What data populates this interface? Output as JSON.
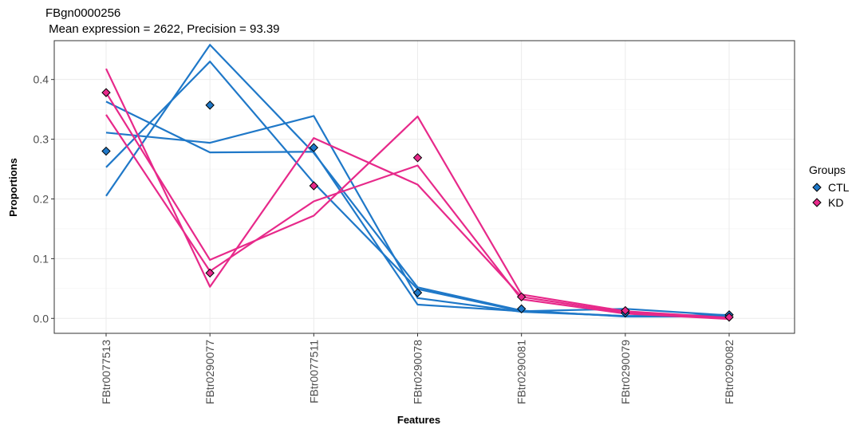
{
  "chart_data": {
    "type": "line",
    "title": "FBgn0000256",
    "subtitle": " Mean expression = 2622, Precision = 93.39",
    "xlabel": "Features",
    "ylabel": "Proportions",
    "categories": [
      "FBtr0077513",
      "FBtr0290077",
      "FBtr0077511",
      "FBtr0290078",
      "FBtr0290081",
      "FBtr0290079",
      "FBtr0290082"
    ],
    "ylim": [
      -0.025,
      0.465
    ],
    "yticks": [
      0.0,
      0.1,
      0.2,
      0.3,
      0.4
    ],
    "ytick_labels": [
      "0.0",
      "0.1",
      "0.2",
      "0.3",
      "0.4"
    ],
    "grid": true,
    "legend": {
      "title": "Groups",
      "placement": "right",
      "entries": [
        {
          "name": "CTL",
          "color": "#1f78c8"
        },
        {
          "name": "KD",
          "color": "#e7298a"
        }
      ]
    },
    "colors": {
      "CTL": "#1f78c8",
      "KD": "#e7298a"
    },
    "lines": [
      {
        "group": "CTL",
        "values": [
          0.205,
          0.458,
          0.277,
          0.052,
          0.013,
          0.003,
          0.003
        ]
      },
      {
        "group": "CTL",
        "values": [
          0.253,
          0.43,
          0.227,
          0.049,
          0.012,
          0.004,
          0.004
        ]
      },
      {
        "group": "CTL",
        "values": [
          0.311,
          0.294,
          0.339,
          0.034,
          0.011,
          0.004,
          0.006
        ]
      },
      {
        "group": "CTL",
        "values": [
          0.363,
          0.278,
          0.279,
          0.023,
          0.012,
          0.016,
          0.005
        ]
      },
      {
        "group": "KD",
        "values": [
          0.418,
          0.053,
          0.302,
          0.224,
          0.036,
          0.01,
          0.001
        ]
      },
      {
        "group": "KD",
        "values": [
          0.378,
          0.098,
          0.172,
          0.338,
          0.04,
          0.012,
          0.001
        ]
      },
      {
        "group": "KD",
        "values": [
          0.341,
          0.079,
          0.196,
          0.256,
          0.032,
          0.008,
          -0.001
        ]
      }
    ],
    "points": [
      {
        "group": "CTL",
        "values": [
          0.28,
          0.357,
          0.286,
          0.043,
          0.016,
          0.009,
          0.006
        ]
      },
      {
        "group": "KD",
        "values": [
          0.378,
          0.076,
          0.222,
          0.269,
          0.036,
          0.013,
          0.002
        ]
      }
    ]
  }
}
